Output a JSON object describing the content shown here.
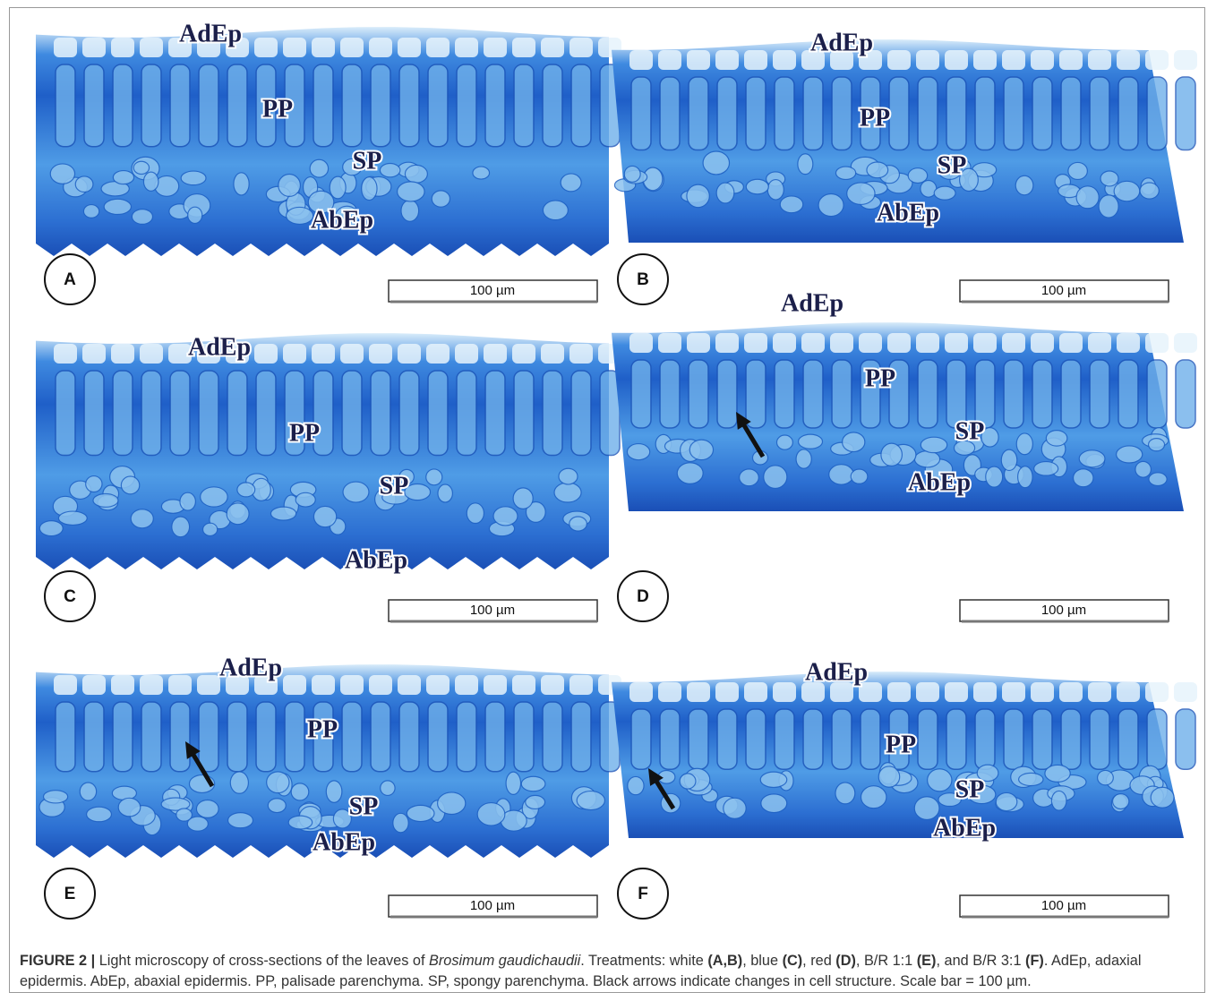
{
  "figure": {
    "panels": [
      {
        "letter": "A",
        "labels": [
          "AdEp",
          "PP",
          "SP",
          "AbEp"
        ],
        "scale": "100 µm"
      },
      {
        "letter": "B",
        "labels": [
          "AdEp",
          "PP",
          "SP",
          "AbEp"
        ],
        "scale": "100 µm"
      },
      {
        "letter": "C",
        "labels": [
          "AdEp",
          "PP",
          "SP",
          "AbEp"
        ],
        "scale": "100 µm"
      },
      {
        "letter": "D",
        "labels": [
          "AdEp",
          "PP",
          "SP",
          "AbEp"
        ],
        "scale": "100 µm"
      },
      {
        "letter": "E",
        "labels": [
          "AdEp",
          "PP",
          "SP",
          "AbEp"
        ],
        "scale": "100 µm"
      },
      {
        "letter": "F",
        "labels": [
          "AdEp",
          "PP",
          "SP",
          "AbEp"
        ],
        "scale": "100 µm"
      }
    ],
    "caption": [
      {
        "text": "FIGURE 2 |",
        "style": "bold"
      },
      {
        "text": " Light microscopy of cross-sections of the leaves of ",
        "style": "normal"
      },
      {
        "text": "Brosimum gaudichaudii",
        "style": "italic"
      },
      {
        "text": ". Treatments: white ",
        "style": "normal"
      },
      {
        "text": "(A,B)",
        "style": "bold"
      },
      {
        "text": ", blue ",
        "style": "normal"
      },
      {
        "text": "(C)",
        "style": "bold"
      },
      {
        "text": ", red ",
        "style": "normal"
      },
      {
        "text": "(D)",
        "style": "bold"
      },
      {
        "text": ", B/R 1:1 ",
        "style": "normal"
      },
      {
        "text": "(E)",
        "style": "bold"
      },
      {
        "text": ", and B/R 3:1 ",
        "style": "normal"
      },
      {
        "text": "(F)",
        "style": "bold"
      },
      {
        "text": ". AdEp, adaxial epidermis. AbEp, abaxial epidermis. PP, palisade parenchyma. SP, spongy parenchyma. Black arrows indicate changes in cell structure. Scale bar = 100 µm.",
        "style": "normal"
      }
    ]
  }
}
